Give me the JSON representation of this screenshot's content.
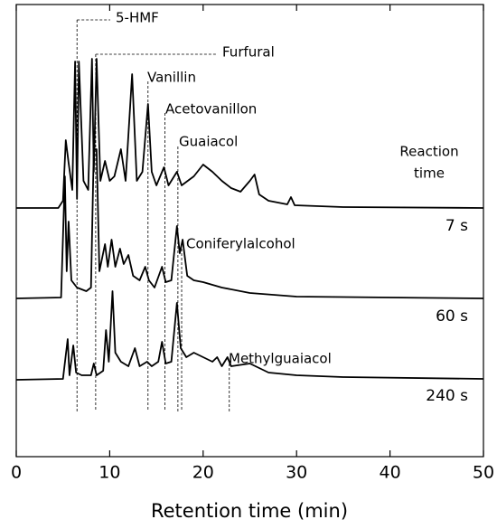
{
  "chart_data": {
    "type": "line",
    "x_label": "Retention time (min)",
    "xlim": [
      0,
      50
    ],
    "xticks": [
      0,
      10,
      20,
      30,
      40,
      50
    ],
    "ylim": [
      45,
      545
    ],
    "legend_title_lines": [
      "Reaction",
      "time"
    ],
    "series": [
      {
        "name": "7 s",
        "color": "#000000",
        "x": [
          0,
          4.5,
          5.0,
          5.3,
          5.6,
          6.0,
          6.3,
          6.5,
          6.7,
          7.2,
          7.7,
          8.1,
          8.3,
          8.6,
          9.0,
          9.5,
          10.0,
          10.5,
          11.2,
          11.7,
          12.4,
          12.9,
          13.5,
          14.1,
          14.5,
          15.0,
          15.8,
          16.3,
          17.2,
          17.7,
          19.0,
          20.0,
          21.0,
          22.0,
          23.0,
          24.0,
          25.0,
          25.5,
          26.0,
          27.0,
          29.0,
          29.4,
          29.8,
          35,
          50
        ],
        "values": [
          320,
          320,
          328,
          395,
          370,
          340,
          482,
          330,
          482,
          350,
          340,
          485,
          360,
          485,
          350,
          372,
          350,
          355,
          385,
          350,
          468,
          350,
          360,
          435,
          360,
          345,
          365,
          345,
          360,
          345,
          355,
          368,
          360,
          350,
          342,
          338,
          350,
          357,
          335,
          328,
          324,
          332,
          323,
          321,
          320
        ]
      },
      {
        "name": "60 s",
        "color": "#000000",
        "x": [
          0,
          4.8,
          5.2,
          5.4,
          5.6,
          5.9,
          6.5,
          7.5,
          8.0,
          8.3,
          8.6,
          8.9,
          9.5,
          9.8,
          10.2,
          10.6,
          11.1,
          11.5,
          12.0,
          12.5,
          13.2,
          13.8,
          14.2,
          14.8,
          15.6,
          16.0,
          16.6,
          17.2,
          17.5,
          17.8,
          18.3,
          19,
          20,
          22,
          25,
          30,
          50
        ],
        "values": [
          220,
          221,
          355,
          250,
          305,
          240,
          232,
          228,
          232,
          385,
          385,
          250,
          280,
          255,
          285,
          255,
          275,
          258,
          268,
          245,
          240,
          255,
          240,
          232,
          255,
          238,
          240,
          300,
          270,
          285,
          245,
          240,
          238,
          232,
          226,
          222,
          220
        ]
      },
      {
        "name": "240 s",
        "color": "#000000",
        "x": [
          0,
          5.0,
          5.5,
          5.7,
          6.1,
          6.4,
          7,
          8.0,
          8.3,
          8.6,
          9.3,
          9.6,
          9.9,
          10.3,
          10.6,
          11.2,
          12.0,
          12.7,
          13.2,
          14.0,
          14.5,
          15.2,
          15.6,
          16.0,
          16.6,
          17.2,
          17.6,
          18.2,
          19,
          20,
          21,
          21.5,
          22,
          22.6,
          23,
          25,
          27,
          30,
          35,
          50
        ],
        "values": [
          130,
          131,
          175,
          135,
          168,
          138,
          135,
          135,
          148,
          135,
          140,
          185,
          150,
          228,
          160,
          150,
          145,
          165,
          145,
          150,
          145,
          150,
          172,
          148,
          150,
          215,
          165,
          155,
          160,
          155,
          150,
          155,
          145,
          155,
          145,
          148,
          138,
          135,
          133,
          131
        ]
      }
    ],
    "annotations": [
      {
        "text": "5-HMF",
        "x": 6.5
      },
      {
        "text": "Furfural",
        "x": 8.5
      },
      {
        "text": "Vanillin",
        "x": 14.1
      },
      {
        "text": "Acetovanillon",
        "x": 15.9
      },
      {
        "text": "Guaiacol",
        "x": 17.3
      },
      {
        "text": "Coniferylalcohol",
        "x": 17.7
      },
      {
        "text": "Methylguaiacol",
        "x": 22.8
      }
    ]
  }
}
